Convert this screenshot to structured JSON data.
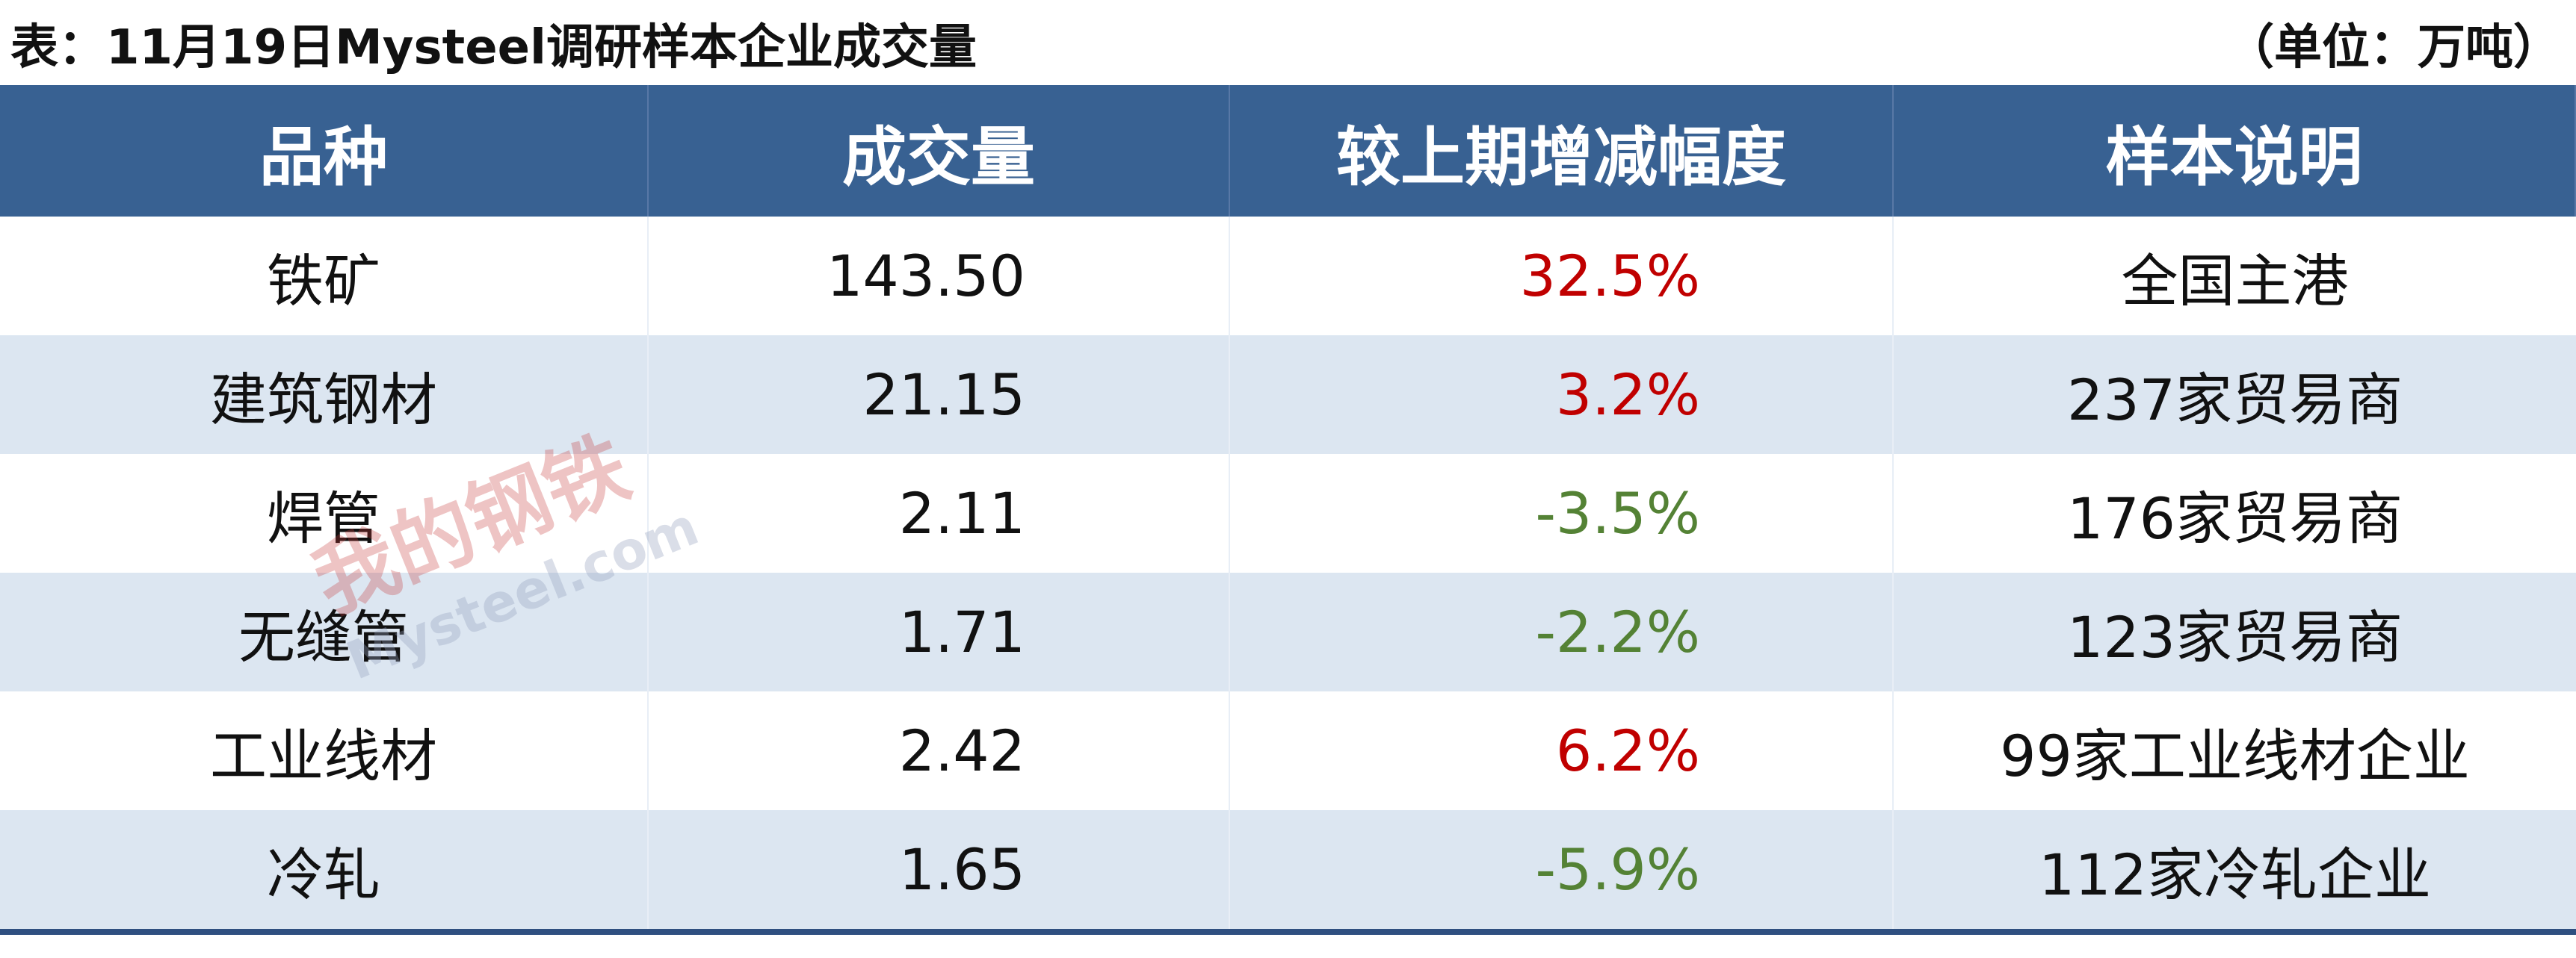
{
  "header": {
    "title": "表：11月19日Mysteel调研样本企业成交量",
    "unit": "（单位：万吨）"
  },
  "table": {
    "columns": [
      "品种",
      "成交量",
      "较上期增减幅度",
      "样本说明"
    ],
    "rows": [
      [
        "铁矿",
        "143.50",
        "32.5%",
        "全国主港"
      ],
      [
        "建筑钢材",
        "21.15",
        "3.2%",
        "237家贸易商"
      ],
      [
        "焊管",
        "2.11",
        "-3.5%",
        "176家贸易商"
      ],
      [
        "无缝管",
        "1.71",
        "-2.2%",
        "123家贸易商"
      ],
      [
        "工业线材",
        "2.42",
        "6.2%",
        "99家工业线材企业"
      ],
      [
        "冷轧",
        "1.65",
        "-5.9%",
        "112家冷轧企业"
      ]
    ]
  },
  "watermark": {
    "logo": "我的钢铁",
    "site": "Mysteel.com"
  }
}
